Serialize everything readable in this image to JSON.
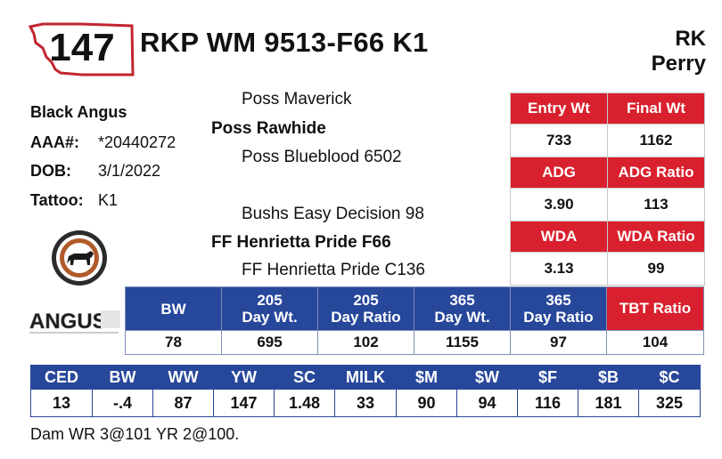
{
  "lot": "147",
  "title": "RKP WM 9513-F66 K1",
  "consignor": {
    "line1": "RK",
    "line2": "Perry"
  },
  "info": {
    "breed": "Black Angus",
    "aaa_label": "AAA#:",
    "aaa_value": "*20440272",
    "dob_label": "DOB:",
    "dob_value": "3/1/2022",
    "tattoo_label": "Tattoo:",
    "tattoo_value": "K1"
  },
  "pedigree": {
    "sire_sire": "Poss Maverick",
    "sire": "Poss Rawhide",
    "sire_dam": "Poss Blueblood 6502",
    "dam_sire": "Bushs Easy Decision 98",
    "dam": "FF Henrietta Pride F66",
    "dam_dam": "FF Henrietta Pride C136"
  },
  "logo_text": "ANGUS",
  "performance": {
    "entry_wt_label": "Entry Wt",
    "final_wt_label": "Final Wt",
    "entry_wt": "733",
    "final_wt": "1162",
    "adg_label": "ADG",
    "adg_ratio_label": "ADG Ratio",
    "adg": "3.90",
    "adg_ratio": "113",
    "wda_label": "WDA",
    "wda_ratio_label": "WDA Ratio",
    "wda": "3.13",
    "wda_ratio": "99"
  },
  "weights": {
    "headers": [
      {
        "l1": "BW",
        "l2": ""
      },
      {
        "l1": "205",
        "l2": "Day Wt."
      },
      {
        "l1": "205",
        "l2": "Day Ratio"
      },
      {
        "l1": "365",
        "l2": "Day Wt."
      },
      {
        "l1": "365",
        "l2": "Day Ratio"
      },
      {
        "l1": "TBT Ratio",
        "l2": ""
      }
    ],
    "values": [
      "78",
      "695",
      "102",
      "1155",
      "97",
      "104"
    ]
  },
  "epds": {
    "headers": [
      "CED",
      "BW",
      "WW",
      "YW",
      "SC",
      "MILK",
      "$M",
      "$W",
      "$F",
      "$B",
      "$C"
    ],
    "values": [
      "13",
      "-.4",
      "87",
      "147",
      "1.48",
      "33",
      "90",
      "94",
      "116",
      "181",
      "325"
    ]
  },
  "note": "Dam WR 3@101 YR 2@100.",
  "colors": {
    "red": "#d9202e",
    "blue": "#27479a"
  }
}
